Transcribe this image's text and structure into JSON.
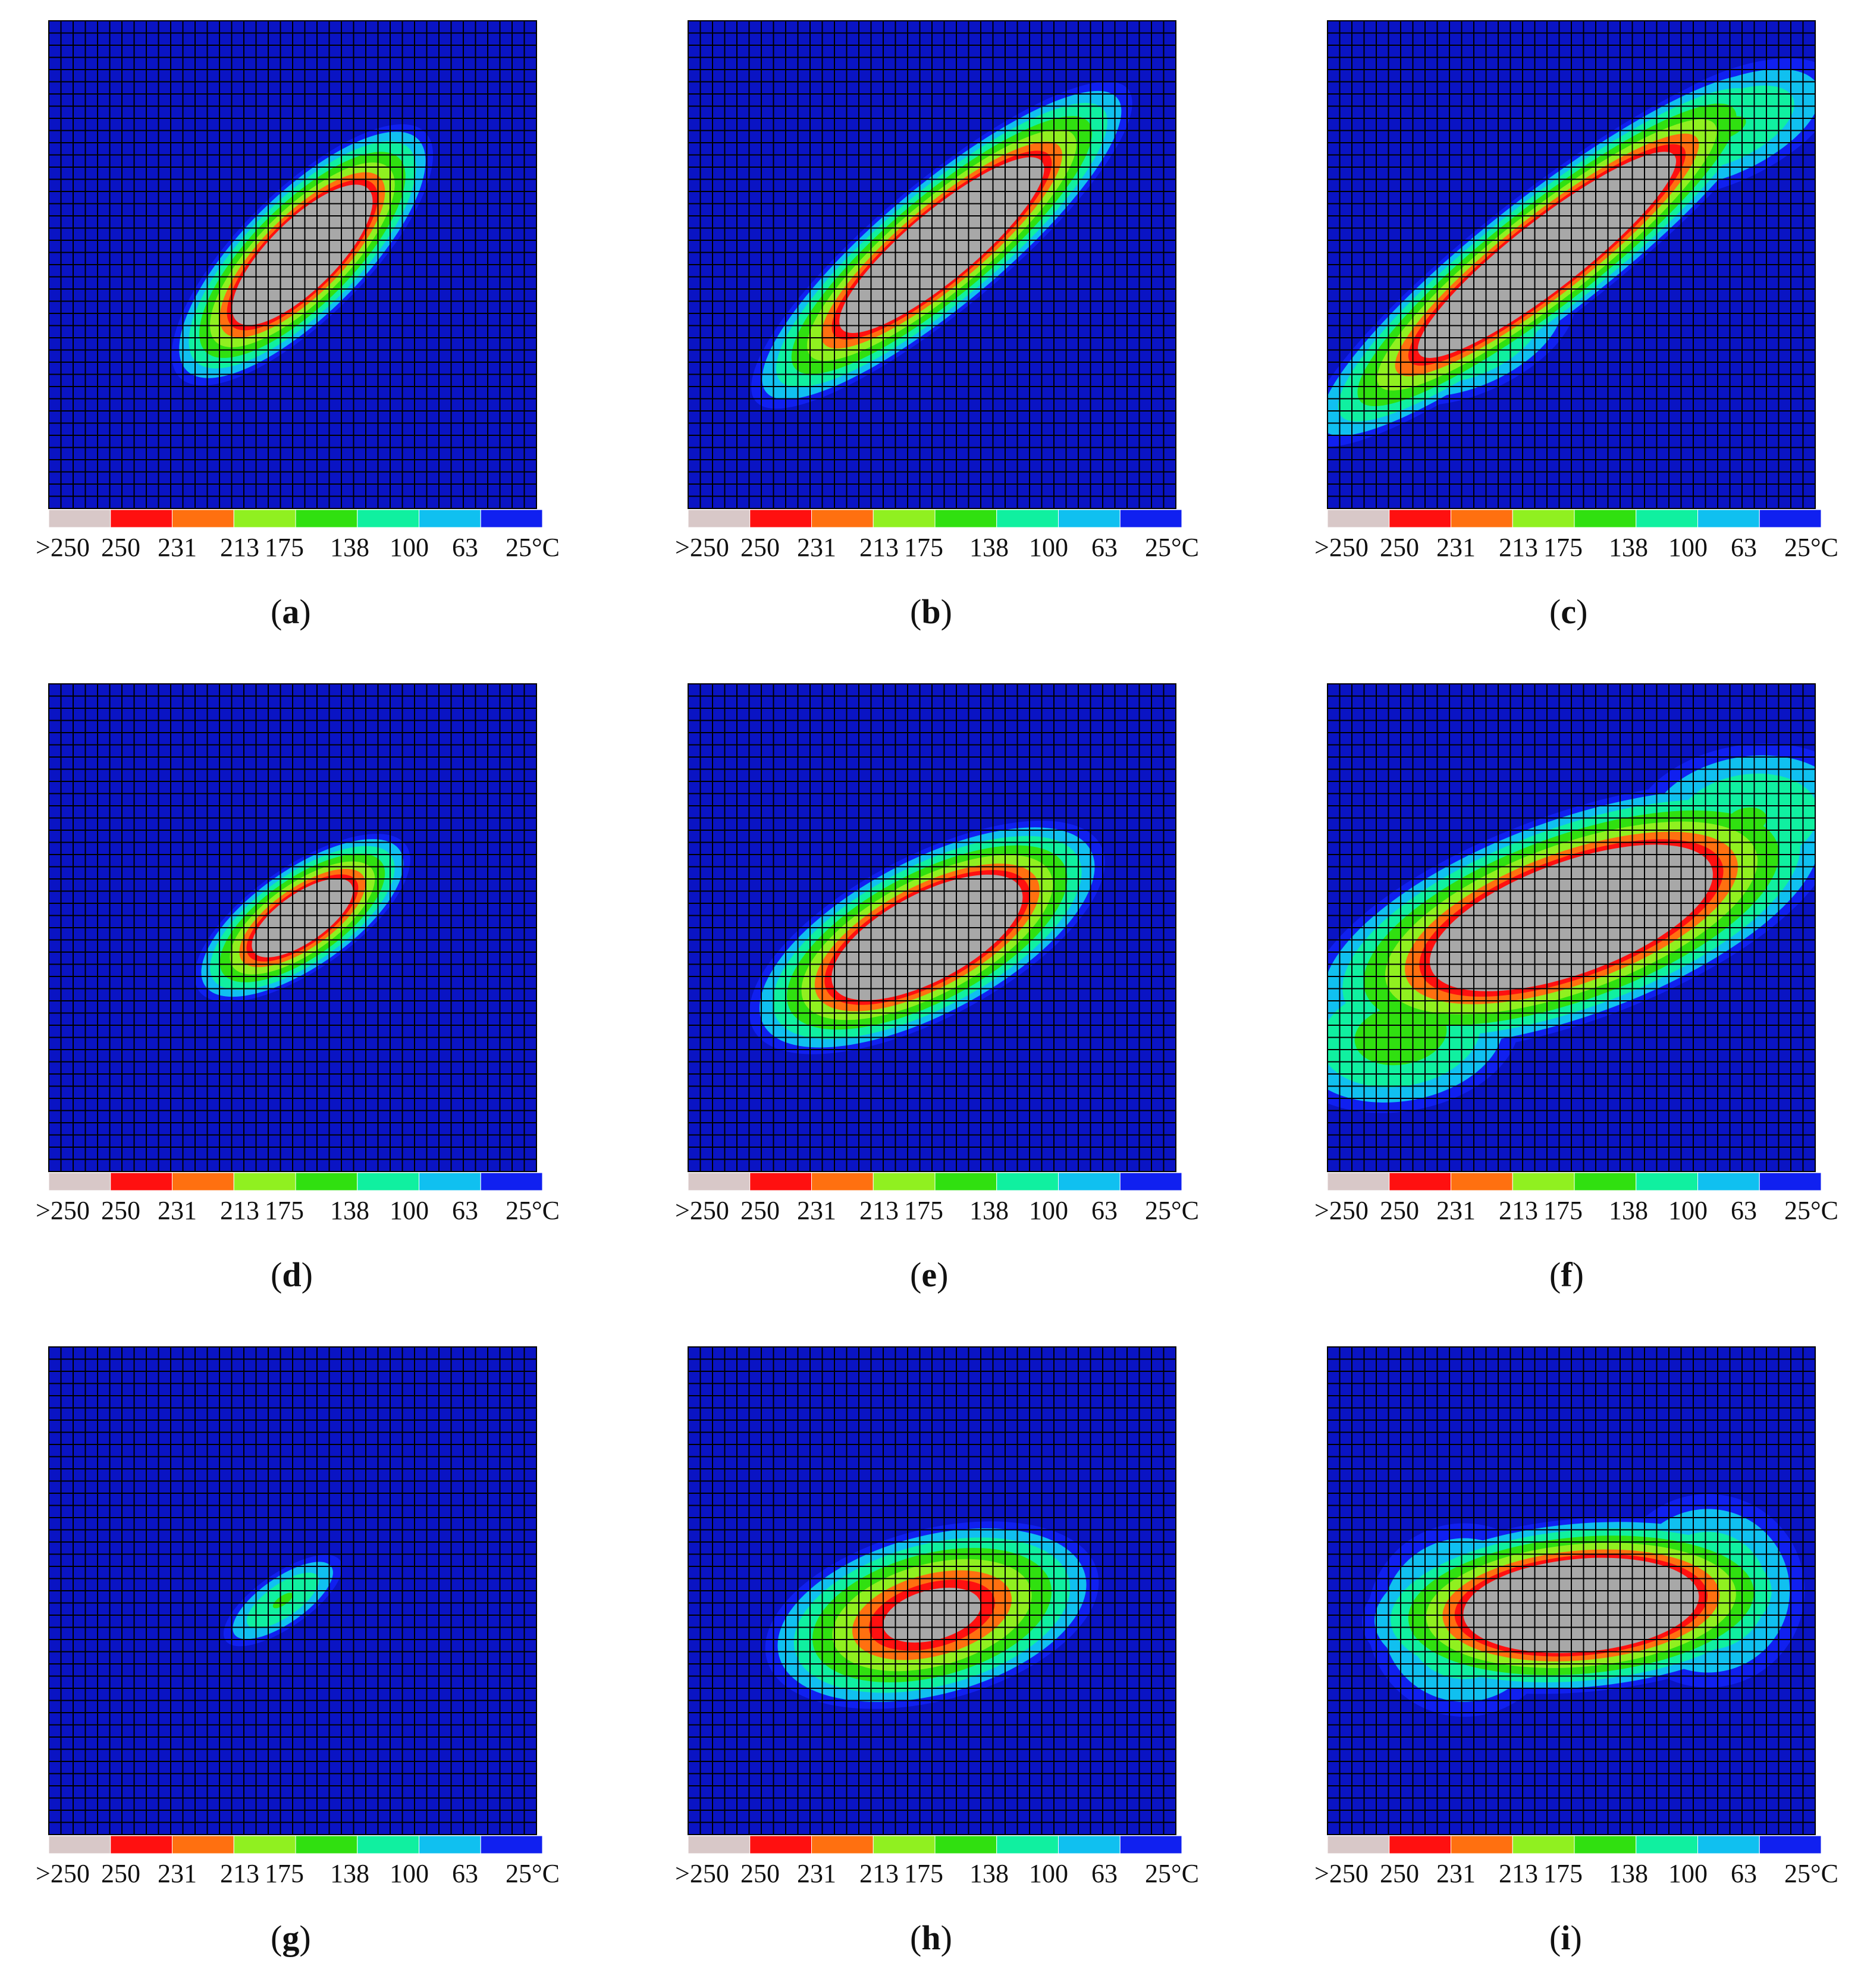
{
  "legend": {
    "labels": [
      ">250",
      "250",
      "231",
      "213",
      "175",
      "138",
      "100",
      "63",
      "25°C"
    ],
    "colors": [
      "#d8c8c8",
      "#ff1010",
      "#ff7010",
      "#90f020",
      "#30e010",
      "#10f0a0",
      "#10c0f0",
      "#1020f0"
    ]
  },
  "colors": {
    "background": "#0a14c4",
    "grid": "#000000",
    "hot": "#a8a8a8"
  },
  "chart_data": [
    {
      "type": "heatmap",
      "caption": "a",
      "hotspots": [
        {
          "cx": 0.52,
          "cy": 0.48,
          "length": 0.3,
          "width": 0.11,
          "angle_deg": -45,
          "peak": 1.0
        }
      ]
    },
    {
      "type": "heatmap",
      "caption": "b",
      "hotspots": [
        {
          "cx": 0.52,
          "cy": 0.46,
          "length": 0.42,
          "width": 0.11,
          "angle_deg": -40,
          "peak": 1.0
        }
      ]
    },
    {
      "type": "heatmap",
      "caption": "c",
      "hotspots": [
        {
          "cx": 0.45,
          "cy": 0.48,
          "length": 0.52,
          "width": 0.11,
          "angle_deg": -38,
          "peak": 1.0
        },
        {
          "cx": 0.3,
          "cy": 0.65,
          "length": 0.2,
          "width": 0.1,
          "angle_deg": -25,
          "peak": 0.5
        },
        {
          "cx": 0.82,
          "cy": 0.22,
          "length": 0.22,
          "width": 0.1,
          "angle_deg": -25,
          "peak": 0.45
        }
      ]
    },
    {
      "type": "heatmap",
      "caption": "d",
      "hotspots": [
        {
          "cx": 0.52,
          "cy": 0.48,
          "length": 0.22,
          "width": 0.09,
          "angle_deg": -35,
          "peak": 0.92
        }
      ]
    },
    {
      "type": "heatmap",
      "caption": "e",
      "hotspots": [
        {
          "cx": 0.49,
          "cy": 0.52,
          "length": 0.34,
          "width": 0.14,
          "angle_deg": -28,
          "peak": 1.0
        }
      ]
    },
    {
      "type": "heatmap",
      "caption": "f",
      "hotspots": [
        {
          "cx": 0.5,
          "cy": 0.48,
          "length": 0.48,
          "width": 0.18,
          "angle_deg": -20,
          "peak": 1.0
        },
        {
          "cx": 0.15,
          "cy": 0.72,
          "length": 0.22,
          "width": 0.14,
          "angle_deg": -10,
          "peak": 0.5
        },
        {
          "cx": 0.86,
          "cy": 0.28,
          "length": 0.22,
          "width": 0.14,
          "angle_deg": -10,
          "peak": 0.45
        }
      ]
    },
    {
      "type": "heatmap",
      "caption": "g",
      "hotspots": [
        {
          "cx": 0.48,
          "cy": 0.52,
          "length": 0.13,
          "width": 0.05,
          "angle_deg": -35,
          "peak": 0.45
        }
      ]
    },
    {
      "type": "heatmap",
      "caption": "h",
      "hotspots": [
        {
          "cx": 0.5,
          "cy": 0.55,
          "length": 0.3,
          "width": 0.15,
          "angle_deg": -15,
          "peak": 0.8
        }
      ]
    },
    {
      "type": "heatmap",
      "caption": "i",
      "hotspots": [
        {
          "cx": 0.52,
          "cy": 0.53,
          "length": 0.38,
          "width": 0.15,
          "angle_deg": -5,
          "peak": 1.0
        },
        {
          "cx": 0.28,
          "cy": 0.56,
          "length": 0.18,
          "width": 0.18,
          "angle_deg": 0,
          "peak": 0.45
        },
        {
          "cx": 0.78,
          "cy": 0.5,
          "length": 0.18,
          "width": 0.18,
          "angle_deg": 0,
          "peak": 0.45
        }
      ]
    }
  ]
}
